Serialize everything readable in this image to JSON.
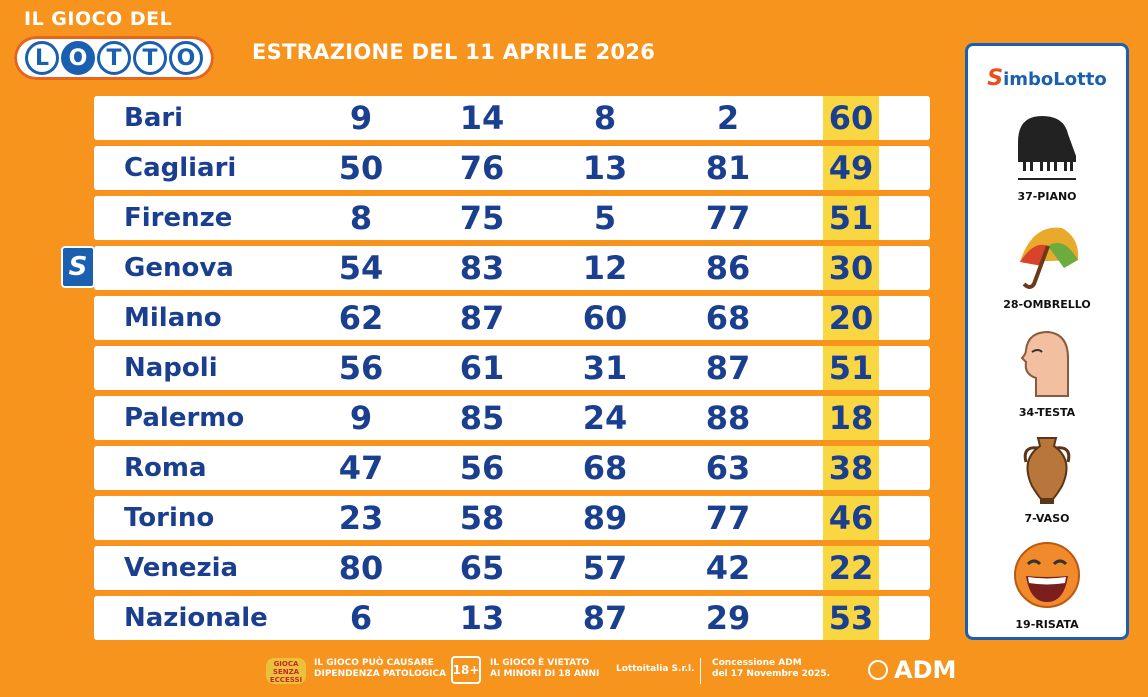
{
  "logo": {
    "top_text": "IL GIOCO DEL",
    "word": [
      "L",
      "O",
      "T",
      "T",
      "O"
    ]
  },
  "title": "ESTRAZIONE DEL 11 APRILE 2026",
  "draw_rows": [
    {
      "city": "Bari",
      "numbers": [
        "9",
        "14",
        "8",
        "2"
      ],
      "extra": "60"
    },
    {
      "city": "Cagliari",
      "numbers": [
        "50",
        "76",
        "13",
        "81"
      ],
      "extra": "49"
    },
    {
      "city": "Firenze",
      "numbers": [
        "8",
        "75",
        "5",
        "77"
      ],
      "extra": "51"
    },
    {
      "city": "Genova",
      "numbers": [
        "54",
        "83",
        "12",
        "86"
      ],
      "extra": "30"
    },
    {
      "city": "Milano",
      "numbers": [
        "62",
        "87",
        "60",
        "68"
      ],
      "extra": "20"
    },
    {
      "city": "Napoli",
      "numbers": [
        "56",
        "61",
        "31",
        "87"
      ],
      "extra": "51"
    },
    {
      "city": "Palermo",
      "numbers": [
        "9",
        "85",
        "24",
        "88"
      ],
      "extra": "18"
    },
    {
      "city": "Roma",
      "numbers": [
        "47",
        "56",
        "68",
        "63"
      ],
      "extra": "38"
    },
    {
      "city": "Torino",
      "numbers": [
        "23",
        "58",
        "89",
        "77"
      ],
      "extra": "46"
    },
    {
      "city": "Venezia",
      "numbers": [
        "80",
        "65",
        "57",
        "42"
      ],
      "extra": "22"
    },
    {
      "city": "Nazionale",
      "numbers": [
        "6",
        "13",
        "87",
        "29"
      ],
      "extra": "53"
    }
  ],
  "simbolotto_marker": {
    "glyph": "S",
    "city": "Genova"
  },
  "simbolotto": {
    "title_s": "S",
    "title_rest": "imboLotto",
    "symbols": [
      {
        "label": "37-PIANO",
        "icon": "piano-icon"
      },
      {
        "label": "28-OMBRELLO",
        "icon": "umbrella-icon"
      },
      {
        "label": "34-TESTA",
        "icon": "head-icon"
      },
      {
        "label": "7-VASO",
        "icon": "vase-icon"
      },
      {
        "label": "19-RISATA",
        "icon": "laughing-face-icon"
      }
    ]
  },
  "footer": {
    "logo_text": "GIOCA SENZA ECCESSI",
    "warning_line1": "IL GIOCO PUÒ CAUSARE",
    "warning_line2": "DIPENDENZA PATOLOGICA",
    "age_badge": "18+",
    "minors_line1": "IL GIOCO È VIETATO",
    "minors_line2": "AI MINORI DI 18 ANNI",
    "operator": "Lottoitalia S.r.l.",
    "concession_line1": "Concessione ADM",
    "concession_line2": "del 17 Novembre 2025.",
    "adm": "ADM"
  },
  "colors": {
    "background": "#f7941d",
    "row_bg": "#ffffff",
    "text_blue": "#1b3f8f",
    "extra_highlight": "#f8d743",
    "panel_border": "#1b5fb0"
  }
}
